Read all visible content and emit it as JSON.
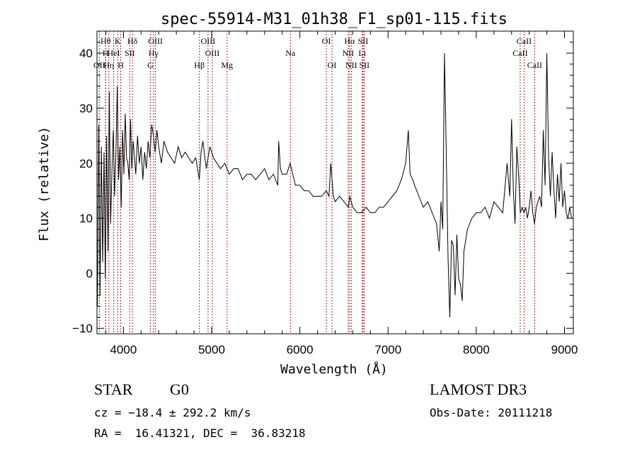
{
  "chart_data": {
    "type": "line",
    "title": "spec-55914-M31_01h38_F1_sp01-115.fits",
    "xlabel": "Wavelength (Å)",
    "ylabel": "Flux (relative)",
    "xlim": [
      3700,
      9100
    ],
    "ylim": [
      -11,
      44
    ],
    "x_ticks": [
      4000,
      5000,
      6000,
      7000,
      8000,
      9000
    ],
    "x_tick_labels": [
      "4000",
      "5000",
      "6000",
      "7000",
      "8000",
      "9000"
    ],
    "y_ticks": [
      -10,
      0,
      10,
      20,
      30,
      40
    ],
    "y_tick_labels": [
      "−10",
      "0",
      "10",
      "20",
      "30",
      "40"
    ],
    "grid": false,
    "line_color": "#000000",
    "marker_color": "#b22222",
    "spectrum": {
      "x": [
        3705,
        3720,
        3735,
        3750,
        3765,
        3780,
        3795,
        3810,
        3825,
        3840,
        3855,
        3870,
        3885,
        3900,
        3915,
        3930,
        3945,
        3960,
        3975,
        3990,
        4005,
        4020,
        4035,
        4050,
        4065,
        4080,
        4095,
        4110,
        4125,
        4140,
        4160,
        4180,
        4200,
        4220,
        4240,
        4260,
        4280,
        4300,
        4320,
        4340,
        4360,
        4380,
        4400,
        4430,
        4460,
        4500,
        4540,
        4580,
        4620,
        4660,
        4700,
        4740,
        4780,
        4820,
        4860,
        4880,
        4900,
        4940,
        4980,
        5020,
        5060,
        5100,
        5150,
        5200,
        5250,
        5300,
        5350,
        5400,
        5450,
        5500,
        5550,
        5600,
        5650,
        5700,
        5750,
        5760,
        5780,
        5800,
        5850,
        5890,
        5920,
        5950,
        6000,
        6050,
        6100,
        6150,
        6200,
        6250,
        6300,
        6330,
        6350,
        6380,
        6400,
        6450,
        6500,
        6550,
        6565,
        6600,
        6650,
        6700,
        6750,
        6800,
        6850,
        6900,
        6950,
        7000,
        7050,
        7100,
        7150,
        7200,
        7230,
        7250,
        7280,
        7300,
        7350,
        7400,
        7450,
        7500,
        7550,
        7580,
        7600,
        7620,
        7640,
        7660,
        7680,
        7700,
        7720,
        7740,
        7760,
        7780,
        7800,
        7820,
        7840,
        7860,
        7880,
        7900,
        7950,
        8000,
        8050,
        8100,
        8150,
        8200,
        8250,
        8300,
        8350,
        8380,
        8400,
        8420,
        8440,
        8460,
        8480,
        8500,
        8520,
        8540,
        8560,
        8580,
        8600,
        8620,
        8640,
        8660,
        8680,
        8700,
        8720,
        8740,
        8760,
        8780,
        8800,
        8820,
        8840,
        8860,
        8880,
        8900,
        8920,
        8940,
        8960,
        8980,
        9000,
        9020,
        9040,
        9060,
        9080
      ],
      "y": [
        -6,
        27,
        -4,
        23,
        2,
        22,
        -1,
        25,
        4,
        33,
        9,
        19,
        26,
        14,
        22,
        34,
        17,
        23,
        12,
        26,
        18,
        29,
        21,
        20,
        17,
        28,
        19,
        24,
        21,
        18,
        25,
        20,
        23,
        17,
        22,
        19,
        24,
        21,
        27,
        25,
        22,
        26,
        23,
        20,
        24,
        22,
        21,
        20,
        23,
        21,
        22,
        21,
        20,
        21,
        17,
        22,
        24,
        19,
        23,
        21,
        20,
        19,
        20,
        18,
        19,
        19,
        17,
        18,
        18,
        17,
        18,
        19,
        17,
        18,
        16,
        24,
        19,
        18,
        18,
        20,
        18,
        16,
        16,
        15,
        15,
        14,
        14,
        14,
        15,
        14,
        20,
        14,
        13,
        14,
        13,
        12,
        14,
        12,
        11,
        11,
        12,
        11,
        11,
        12,
        12,
        13,
        14,
        15,
        17,
        20,
        26,
        18,
        17,
        16,
        14,
        12,
        13,
        11,
        9,
        4,
        13,
        8,
        40,
        22,
        3,
        -8,
        6,
        5,
        -4,
        7,
        -1,
        -2,
        -5,
        4,
        6,
        8,
        10,
        11,
        11,
        12,
        10,
        13,
        12,
        11,
        20,
        14,
        28,
        15,
        9,
        23,
        18,
        11,
        12,
        11,
        12,
        10,
        12,
        15,
        11,
        9,
        12,
        13,
        14,
        12,
        26,
        16,
        40,
        21,
        14,
        22,
        15,
        10,
        18,
        13,
        20,
        12,
        15,
        11,
        10,
        12,
        10
      ]
    },
    "line_markers": [
      {
        "label": "OII",
        "x": 3727,
        "row": 3
      },
      {
        "label": "Hθ",
        "x": 3798,
        "row": 1
      },
      {
        "label": "H",
        "x": 3798,
        "row": 2
      },
      {
        "label": "Hη",
        "x": 3835,
        "row": 3
      },
      {
        "label": "K",
        "x": 3934,
        "row": 1
      },
      {
        "label": "HeI",
        "x": 3889,
        "row": 2
      },
      {
        "label": "H",
        "x": 3969,
        "row": 3
      },
      {
        "label": "SII",
        "x": 4072,
        "row": 2
      },
      {
        "label": "Hδ",
        "x": 4102,
        "row": 1
      },
      {
        "label": "OIII",
        "x": 4363,
        "row": 1
      },
      {
        "label": "Hγ",
        "x": 4341,
        "row": 2
      },
      {
        "label": "G",
        "x": 4305,
        "row": 3
      },
      {
        "label": "OIII",
        "x": 4959,
        "row": 1
      },
      {
        "label": "OIII",
        "x": 5007,
        "row": 2
      },
      {
        "label": "Hβ",
        "x": 4861,
        "row": 3
      },
      {
        "label": "Mg",
        "x": 5175,
        "row": 3
      },
      {
        "label": "Na",
        "x": 5893,
        "row": 2
      },
      {
        "label": "OI",
        "x": 6300,
        "row": 1
      },
      {
        "label": "OI",
        "x": 6364,
        "row": 3
      },
      {
        "label": "Hα",
        "x": 6563,
        "row": 1
      },
      {
        "label": "SII",
        "x": 6717,
        "row": 1
      },
      {
        "label": "NII",
        "x": 6548,
        "row": 2
      },
      {
        "label": "Li",
        "x": 6708,
        "row": 2
      },
      {
        "label": "NII",
        "x": 6583,
        "row": 3
      },
      {
        "label": "SII",
        "x": 6731,
        "row": 3
      },
      {
        "label": "CaII",
        "x": 8542,
        "row": 1
      },
      {
        "label": "CaII",
        "x": 8498,
        "row": 2
      },
      {
        "label": "CaII",
        "x": 8662,
        "row": 3
      }
    ]
  },
  "info": {
    "object_class": "STAR",
    "subclass": "G0",
    "survey": "LAMOST DR3",
    "cz": "cz = −18.4 ± 292.2 km/s",
    "obs_date": "Obs-Date: 20111218",
    "coords": "RA =  16.41321, DEC =  36.83218"
  }
}
